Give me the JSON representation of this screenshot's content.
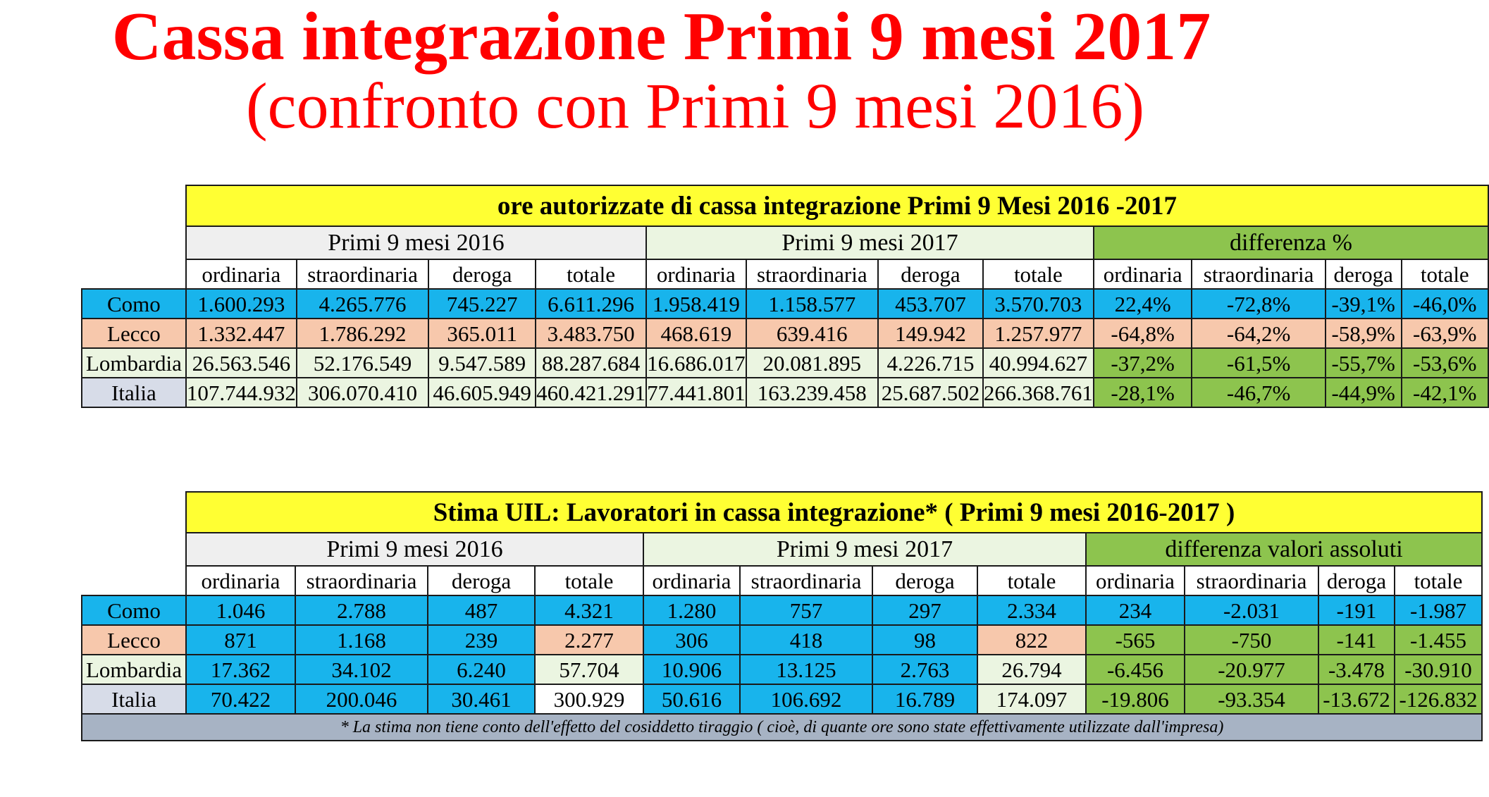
{
  "title": {
    "line1": "Cassa integrazione Primi 9 mesi 2017",
    "line2": "(confronto con Primi 9 mesi 2016)"
  },
  "colors": {
    "title": "#ff0000",
    "header_yellow": "#ffff33",
    "como_blue": "#18b4ec",
    "lecco_peach": "#f7c8ac",
    "diff_green": "#8dc44e",
    "light_green": "#ebf5e1",
    "italia_grey": "#d7dce8",
    "note_grey": "#a7b3c4"
  },
  "table1": {
    "title": "ore autorizzate di cassa integrazione Primi 9 Mesi 2016 -2017",
    "groups": [
      "Primi 9 mesi 2016",
      "Primi 9 mesi 2017",
      "differenza %"
    ],
    "columns": [
      "ordinaria",
      "straordinaria",
      "deroga",
      "totale",
      "ordinaria",
      "straordinaria",
      "deroga",
      "totale",
      "ordinaria",
      "straordinaria",
      "deroga",
      "totale"
    ],
    "rows": [
      {
        "label": "Como",
        "values": [
          "1.600.293",
          "4.265.776",
          "745.227",
          "6.611.296",
          "1.958.419",
          "1.158.577",
          "453.707",
          "3.570.703",
          "22,4%",
          "-72,8%",
          "-39,1%",
          "-46,0%"
        ]
      },
      {
        "label": "Lecco",
        "values": [
          "1.332.447",
          "1.786.292",
          "365.011",
          "3.483.750",
          "468.619",
          "639.416",
          "149.942",
          "1.257.977",
          "-64,8%",
          "-64,2%",
          "-58,9%",
          "-63,9%"
        ]
      },
      {
        "label": "Lombardia",
        "values": [
          "26.563.546",
          "52.176.549",
          "9.547.589",
          "88.287.684",
          "16.686.017",
          "20.081.895",
          "4.226.715",
          "40.994.627",
          "-37,2%",
          "-61,5%",
          "-55,7%",
          "-53,6%"
        ]
      },
      {
        "label": "Italia",
        "values": [
          "107.744.932",
          "306.070.410",
          "46.605.949",
          "460.421.291",
          "77.441.801",
          "163.239.458",
          "25.687.502",
          "266.368.761",
          "-28,1%",
          "-46,7%",
          "-44,9%",
          "-42,1%"
        ]
      }
    ]
  },
  "table2": {
    "title": "Stima UIL: Lavoratori in cassa integrazione* ( Primi 9 mesi 2016-2017 )",
    "groups": [
      "Primi 9 mesi 2016",
      "Primi 9 mesi 2017",
      "differenza valori assoluti"
    ],
    "columns": [
      "ordinaria",
      "straordinaria",
      "deroga",
      "totale",
      "ordinaria",
      "straordinaria",
      "deroga",
      "totale",
      "ordinaria",
      "straordinaria",
      "deroga",
      "totale"
    ],
    "rows": [
      {
        "label": "Como",
        "values": [
          "1.046",
          "2.788",
          "487",
          "4.321",
          "1.280",
          "757",
          "297",
          "2.334",
          "234",
          "-2.031",
          "-191",
          "-1.987"
        ]
      },
      {
        "label": "Lecco",
        "values": [
          "871",
          "1.168",
          "239",
          "2.277",
          "306",
          "418",
          "98",
          "822",
          "-565",
          "-750",
          "-141",
          "-1.455"
        ]
      },
      {
        "label": "Lombardia",
        "values": [
          "17.362",
          "34.102",
          "6.240",
          "57.704",
          "10.906",
          "13.125",
          "2.763",
          "26.794",
          "-6.456",
          "-20.977",
          "-3.478",
          "-30.910"
        ]
      },
      {
        "label": "Italia",
        "values": [
          "70.422",
          "200.046",
          "30.461",
          "300.929",
          "50.616",
          "106.692",
          "16.789",
          "174.097",
          "-19.806",
          "-93.354",
          "-13.672",
          "-126.832"
        ]
      }
    ],
    "note": "* La stima non tiene conto dell'effetto del cosiddetto tiraggio ( cioè, di quante ore sono state effettivamente utilizzate dall'impresa)"
  }
}
